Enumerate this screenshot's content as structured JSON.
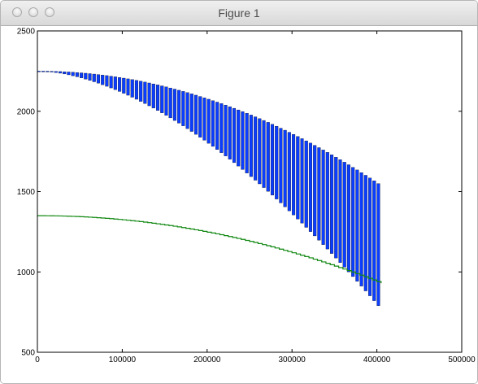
{
  "window": {
    "title": "Figure 1"
  },
  "chart_data": {
    "type": "bar",
    "title": "",
    "xlabel": "",
    "ylabel": "",
    "xlim": [
      0,
      500000
    ],
    "ylim": [
      500,
      2500
    ],
    "x_ticks": [
      "0",
      "100000",
      "200000",
      "300000",
      "400000",
      "500000"
    ],
    "y_ticks": [
      "500",
      "1000",
      "1500",
      "2000",
      "2500"
    ],
    "grid": false,
    "legend": "none",
    "series": [
      {
        "kind": "blue-bars",
        "color": "#0b3dff",
        "x_start": 0,
        "x_step": 5000,
        "count": 81,
        "bar_width": 3600,
        "top_at_zero": 2250,
        "top_at_400000": 1550,
        "bottom_at_zero": 2250,
        "bottom_at_400000": 790
      },
      {
        "kind": "green-step-line",
        "color": "#118811",
        "x_start": 0,
        "x_end": 405000,
        "y_at_zero": 1350,
        "y_at_400000": 940
      }
    ]
  }
}
